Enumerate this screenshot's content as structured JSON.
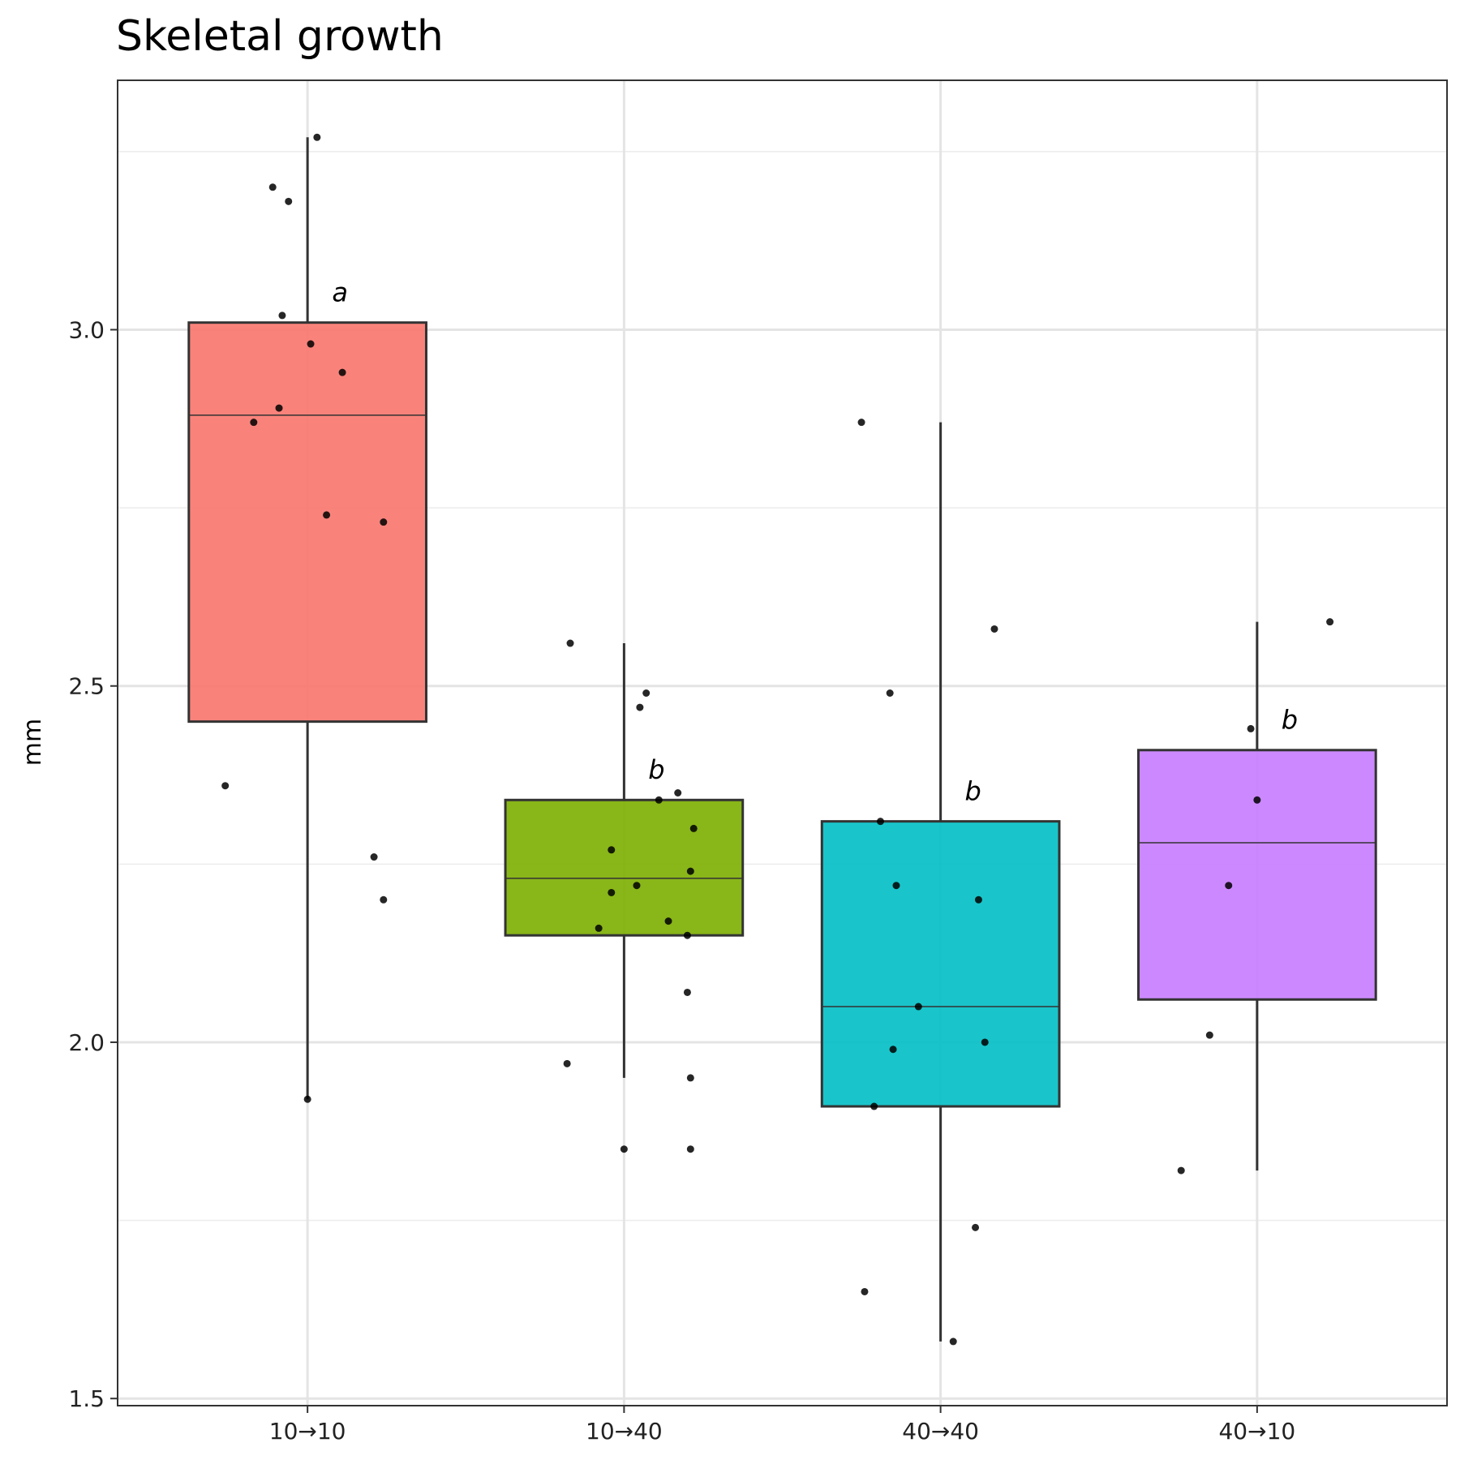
{
  "chart_data": {
    "type": "boxplot",
    "title": "Skeletal growth",
    "xlabel": "",
    "ylabel": "mm",
    "ylim": [
      1.49,
      3.35
    ],
    "yticks": [
      1.5,
      2.0,
      2.5,
      3.0
    ],
    "ytick_labels": [
      "1.5",
      "2.0",
      "2.5",
      "3.0"
    ],
    "grid": true,
    "legend": "none",
    "categories": [
      "10→10",
      "10→40",
      "40→40",
      "40→10"
    ],
    "series": [
      {
        "category": "10→10",
        "color": "#F8766D",
        "whisker_low": 1.92,
        "q1": 2.45,
        "median": 2.88,
        "q3": 3.01,
        "whisker_high": 3.27,
        "letter": "a",
        "letter_value": 3.04,
        "points": [
          {
            "x": 0.89,
            "y": 3.2
          },
          {
            "x": 0.94,
            "y": 3.18
          },
          {
            "x": 1.03,
            "y": 3.27
          },
          {
            "x": 0.92,
            "y": 3.02
          },
          {
            "x": 1.01,
            "y": 2.98
          },
          {
            "x": 1.11,
            "y": 2.94
          },
          {
            "x": 0.83,
            "y": 2.87
          },
          {
            "x": 0.91,
            "y": 2.89
          },
          {
            "x": 1.06,
            "y": 2.74
          },
          {
            "x": 1.24,
            "y": 2.73
          },
          {
            "x": 0.74,
            "y": 2.36
          },
          {
            "x": 1.21,
            "y": 2.26
          },
          {
            "x": 1.24,
            "y": 2.2
          },
          {
            "x": 1.0,
            "y": 1.92
          }
        ]
      },
      {
        "category": "10→40",
        "color": "#7CAE00",
        "whisker_low": 1.95,
        "q1": 2.15,
        "median": 2.23,
        "q3": 2.34,
        "whisker_high": 2.56,
        "letter": "b",
        "letter_value": 2.37,
        "points": [
          {
            "x": 1.83,
            "y": 2.56
          },
          {
            "x": 2.07,
            "y": 2.49
          },
          {
            "x": 2.05,
            "y": 2.47
          },
          {
            "x": 2.11,
            "y": 2.34
          },
          {
            "x": 2.17,
            "y": 2.35
          },
          {
            "x": 2.22,
            "y": 2.3
          },
          {
            "x": 1.96,
            "y": 2.27
          },
          {
            "x": 2.04,
            "y": 2.22
          },
          {
            "x": 1.96,
            "y": 2.21
          },
          {
            "x": 2.21,
            "y": 2.24
          },
          {
            "x": 1.92,
            "y": 2.16
          },
          {
            "x": 2.14,
            "y": 2.17
          },
          {
            "x": 2.2,
            "y": 2.15
          },
          {
            "x": 2.2,
            "y": 2.07
          },
          {
            "x": 1.82,
            "y": 1.97
          },
          {
            "x": 2.21,
            "y": 1.95
          },
          {
            "x": 2.0,
            "y": 1.85
          },
          {
            "x": 2.21,
            "y": 1.85
          }
        ]
      },
      {
        "category": "40→40",
        "color": "#00BFC4",
        "whisker_low": 1.58,
        "q1": 1.91,
        "median": 2.05,
        "q3": 2.31,
        "whisker_high": 2.87,
        "letter": "b",
        "letter_value": 2.34,
        "points": [
          {
            "x": 2.75,
            "y": 2.87
          },
          {
            "x": 3.17,
            "y": 2.58
          },
          {
            "x": 2.84,
            "y": 2.49
          },
          {
            "x": 2.81,
            "y": 2.31
          },
          {
            "x": 2.86,
            "y": 2.22
          },
          {
            "x": 3.12,
            "y": 2.2
          },
          {
            "x": 2.93,
            "y": 2.05
          },
          {
            "x": 3.14,
            "y": 2.0
          },
          {
            "x": 2.85,
            "y": 1.99
          },
          {
            "x": 2.79,
            "y": 1.91
          },
          {
            "x": 3.11,
            "y": 1.74
          },
          {
            "x": 2.76,
            "y": 1.65
          },
          {
            "x": 3.04,
            "y": 1.58
          }
        ]
      },
      {
        "category": "40→10",
        "color": "#C77CFF",
        "whisker_low": 1.82,
        "q1": 2.06,
        "median": 2.28,
        "q3": 2.41,
        "whisker_high": 2.59,
        "letter": "b",
        "letter_value": 2.44,
        "points": [
          {
            "x": 4.23,
            "y": 2.59
          },
          {
            "x": 3.98,
            "y": 2.44
          },
          {
            "x": 4.0,
            "y": 2.34
          },
          {
            "x": 3.91,
            "y": 2.22
          },
          {
            "x": 3.85,
            "y": 2.01
          },
          {
            "x": 3.76,
            "y": 1.82
          }
        ]
      }
    ]
  }
}
